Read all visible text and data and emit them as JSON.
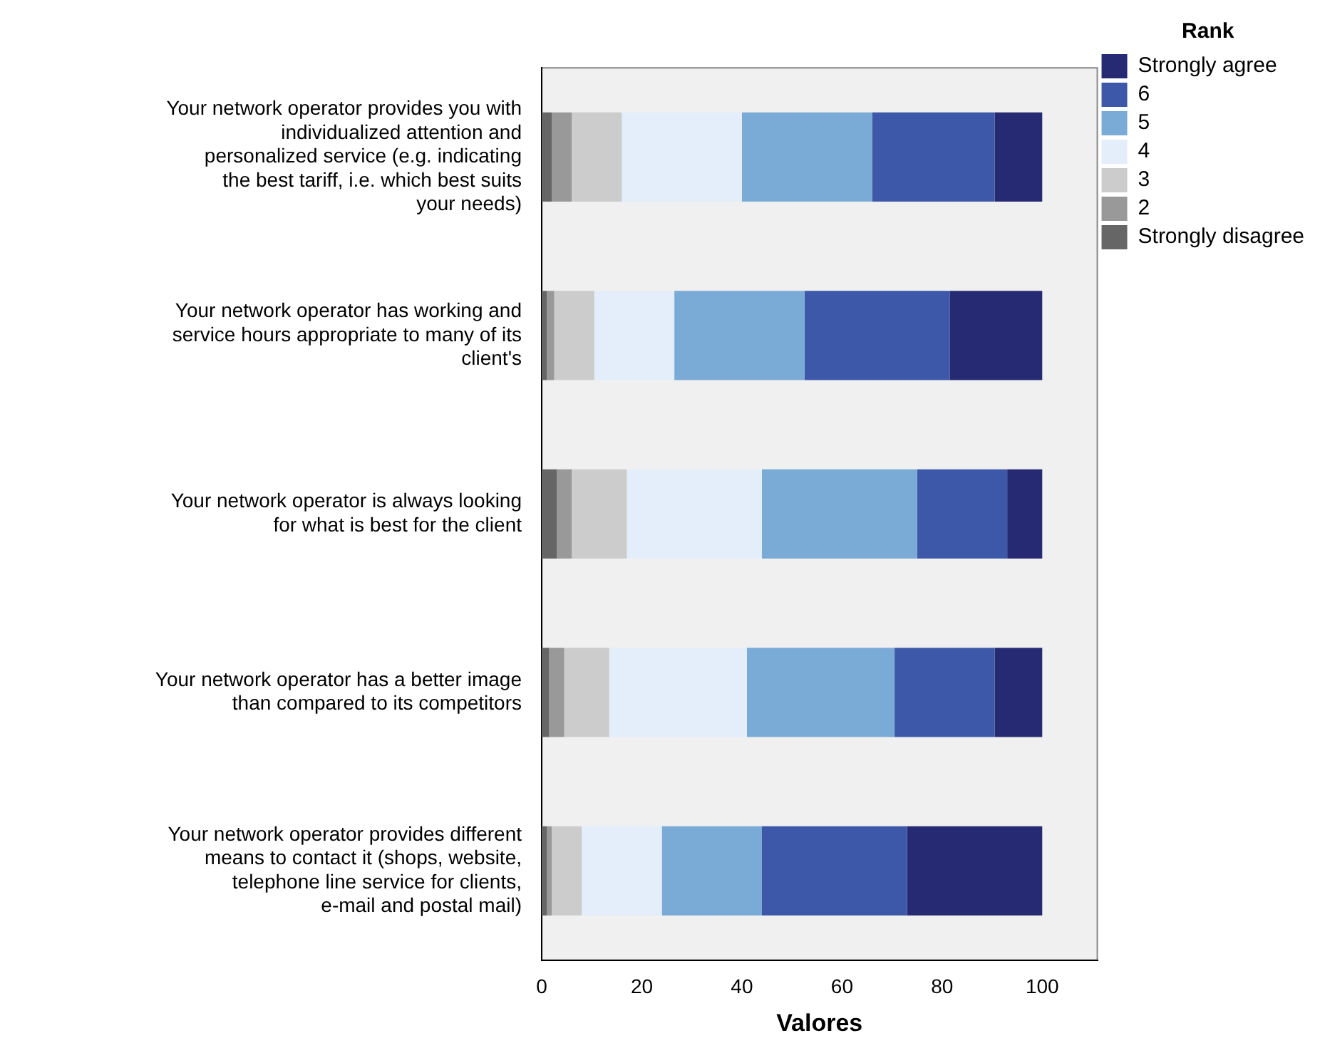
{
  "chart_data": {
    "type": "bar",
    "orientation": "horizontal",
    "stacked": true,
    "xlabel": "Valores",
    "legend_title": "Rank",
    "legend": "top right",
    "grid": false,
    "categories": [
      "Your network operator provides you with individualized attention and personalized service (e.g. indicating the best tariff, i.e. which best suits your needs)",
      "Your network operator has working and service hours appropriate to many of its client's",
      "Your network operator is always looking for what is best for the client",
      "Your network operator has a better image than compared to its competitors",
      "Your network operator provides different means to contact it (shops, website, telephone line service for clients, e-mail and postal mail)"
    ],
    "xlim": [
      0,
      111
    ],
    "xticks": [
      0,
      20,
      40,
      60,
      80,
      100
    ],
    "series": [
      {
        "name": "Strongly disagree",
        "color": "#666666",
        "values": [
          2,
          1,
          3,
          1.5,
          1
        ]
      },
      {
        "name": "2",
        "color": "#999999",
        "values": [
          4,
          1.5,
          3,
          3,
          1
        ]
      },
      {
        "name": "3",
        "color": "#cccccc",
        "values": [
          10,
          8,
          11,
          9,
          6
        ]
      },
      {
        "name": "4",
        "color": "#e3eefa",
        "values": [
          24,
          16,
          27,
          27.5,
          16
        ]
      },
      {
        "name": "5",
        "color": "#7aaad6",
        "values": [
          26,
          26,
          31,
          29.5,
          20
        ]
      },
      {
        "name": "6",
        "color": "#3d58a8",
        "values": [
          24.5,
          29,
          18,
          20,
          29
        ]
      },
      {
        "name": "Strongly agree",
        "color": "#262a73",
        "values": [
          9.5,
          18.5,
          7,
          9.5,
          27
        ]
      }
    ]
  }
}
